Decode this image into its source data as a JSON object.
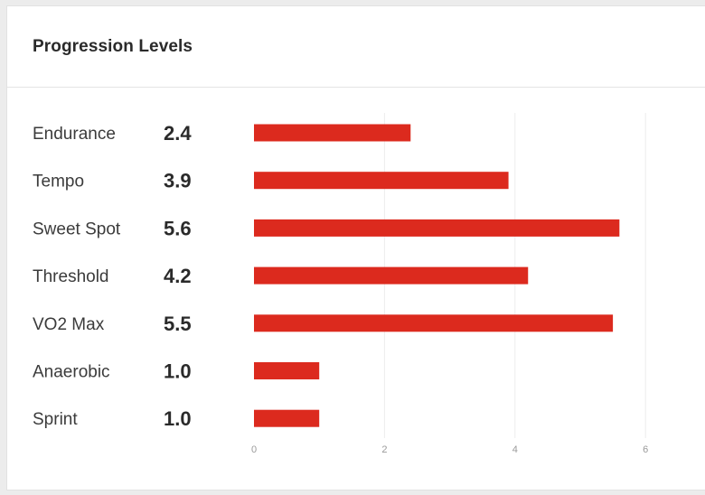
{
  "card": {
    "title": "Progression Levels"
  },
  "colors": {
    "bar": "#dc2a1e",
    "grid": "#ececec"
  },
  "chart_data": {
    "type": "bar",
    "orientation": "horizontal",
    "title": "Progression Levels",
    "categories": [
      "Endurance",
      "Tempo",
      "Sweet Spot",
      "Threshold",
      "VO2 Max",
      "Anaerobic",
      "Sprint"
    ],
    "values": [
      2.4,
      3.9,
      5.6,
      4.2,
      5.5,
      1.0,
      1.0
    ],
    "value_labels": [
      "2.4",
      "3.9",
      "5.6",
      "4.2",
      "5.5",
      "1.0",
      "1.0"
    ],
    "xlim": [
      0,
      6
    ],
    "xticks": [
      0,
      2,
      4,
      6
    ],
    "xlabel": "",
    "ylabel": "",
    "grid": "vertical",
    "legend": "none"
  }
}
